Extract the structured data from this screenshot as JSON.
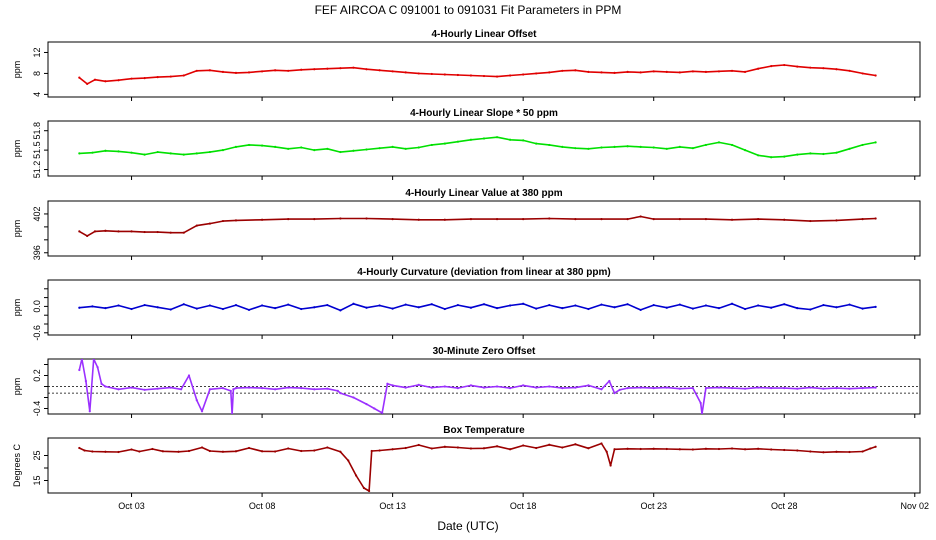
{
  "figure": {
    "title": "FEF   AIRCOA C   091001 to 091031   Fit Parameters in PPM",
    "xlabel": "Date (UTC)"
  },
  "chart_data": [
    {
      "id": "offset",
      "type": "line",
      "title": "4-Hourly Linear Offset",
      "ylabel": "ppm",
      "ylim": [
        3.5,
        14
      ],
      "yticks": [
        4,
        8,
        12
      ],
      "ytick_labels": [
        "4",
        "8",
        "12"
      ],
      "color": "#e00000",
      "x": [
        0,
        0.3,
        0.6,
        1,
        1.5,
        2,
        2.5,
        3,
        3.5,
        4,
        4.5,
        5,
        5.5,
        6,
        6.5,
        7,
        7.5,
        8,
        8.5,
        9,
        9.5,
        10,
        10.5,
        11,
        11.5,
        12,
        12.5,
        13,
        13.5,
        14,
        14.5,
        15,
        15.5,
        16,
        16.5,
        17,
        17.5,
        18,
        18.5,
        19,
        19.5,
        20,
        20.5,
        21,
        21.5,
        22,
        22.5,
        23,
        23.5,
        24,
        24.5,
        25,
        25.5,
        26,
        26.5,
        27,
        27.5,
        28,
        28.5,
        29,
        29.5,
        30,
        30.5
      ],
      "y": [
        7.2,
        6.0,
        6.8,
        6.5,
        6.7,
        7.0,
        7.1,
        7.3,
        7.4,
        7.6,
        8.5,
        8.6,
        8.3,
        8.1,
        8.2,
        8.4,
        8.6,
        8.5,
        8.7,
        8.8,
        8.9,
        9.0,
        9.1,
        8.8,
        8.6,
        8.4,
        8.2,
        8.0,
        7.9,
        7.8,
        7.7,
        7.6,
        7.5,
        7.4,
        7.6,
        7.8,
        8.0,
        8.2,
        8.5,
        8.6,
        8.3,
        8.2,
        8.1,
        8.3,
        8.2,
        8.4,
        8.3,
        8.2,
        8.4,
        8.3,
        8.4,
        8.5,
        8.3,
        8.9,
        9.4,
        9.6,
        9.3,
        9.1,
        9.0,
        8.8,
        8.5,
        8.0,
        7.6
      ]
    },
    {
      "id": "slope",
      "type": "line",
      "title": "4-Hourly Linear Slope * 50 ppm",
      "ylabel": "ppm",
      "ylim": [
        51.1,
        51.95
      ],
      "yticks": [
        51.2,
        51.5,
        51.8
      ],
      "ytick_labels": [
        "51.2",
        "51.5",
        "51.8"
      ],
      "color": "#00e000",
      "x": [
        0,
        0.5,
        1,
        1.5,
        2,
        2.5,
        3,
        3.5,
        4,
        4.5,
        5,
        5.5,
        6,
        6.5,
        7,
        7.5,
        8,
        8.5,
        9,
        9.5,
        10,
        10.5,
        11,
        11.5,
        12,
        12.5,
        13,
        13.5,
        14,
        14.5,
        15,
        15.5,
        16,
        16.5,
        17,
        17.5,
        18,
        18.5,
        19,
        19.5,
        20,
        20.5,
        21,
        21.5,
        22,
        22.5,
        23,
        23.5,
        24,
        24.5,
        25,
        25.5,
        26,
        26.5,
        27,
        27.5,
        28,
        28.5,
        29,
        29.5,
        30,
        30.5
      ],
      "y": [
        51.45,
        51.46,
        51.49,
        51.48,
        51.46,
        51.43,
        51.47,
        51.45,
        51.43,
        51.45,
        51.47,
        51.5,
        51.55,
        51.58,
        51.57,
        51.55,
        51.52,
        51.54,
        51.5,
        51.52,
        51.47,
        51.49,
        51.51,
        51.53,
        51.55,
        51.52,
        51.54,
        51.58,
        51.6,
        51.63,
        51.66,
        51.68,
        51.7,
        51.66,
        51.65,
        51.6,
        51.58,
        51.55,
        51.53,
        51.52,
        51.54,
        51.55,
        51.56,
        51.55,
        51.54,
        51.52,
        51.55,
        51.53,
        51.58,
        51.62,
        51.58,
        51.5,
        51.42,
        51.39,
        51.4,
        51.43,
        51.45,
        51.44,
        51.46,
        51.52,
        51.58,
        51.62
      ]
    },
    {
      "id": "value380",
      "type": "line",
      "title": "4-Hourly Linear Value at 380 ppm",
      "ylabel": "ppm",
      "ylim": [
        395.5,
        404
      ],
      "yticks": [
        396,
        398,
        400,
        402
      ],
      "ytick_labels": [
        "396",
        "",
        "",
        "402"
      ],
      "color": "#9b0000",
      "x": [
        0,
        0.3,
        0.6,
        1,
        1.5,
        2,
        2.5,
        3,
        3.5,
        4,
        4.5,
        5,
        5.5,
        6,
        7,
        8,
        9,
        10,
        11,
        12,
        13,
        14,
        15,
        16,
        17,
        18,
        19,
        20,
        21,
        21.5,
        22,
        23,
        24,
        25,
        26,
        27,
        28,
        29,
        30,
        30.5
      ],
      "y": [
        399.3,
        398.6,
        399.3,
        399.4,
        399.3,
        399.3,
        399.2,
        399.2,
        399.1,
        399.1,
        400.2,
        400.5,
        400.9,
        401.0,
        401.1,
        401.2,
        401.2,
        401.3,
        401.3,
        401.2,
        401.1,
        401.1,
        401.2,
        401.2,
        401.2,
        401.3,
        401.2,
        401.2,
        401.2,
        401.6,
        401.2,
        401.2,
        401.2,
        401.1,
        401.2,
        401.1,
        400.9,
        401.0,
        401.2,
        401.3
      ]
    },
    {
      "id": "curvature",
      "type": "line",
      "title": "4-Hourly Curvature (deviation from linear at 380 ppm)",
      "ylabel": "ppm",
      "ylim": [
        -0.65,
        0.6
      ],
      "yticks": [
        -0.6,
        -0.4,
        -0.2,
        0.0,
        0.2,
        0.4
      ],
      "ytick_labels": [
        "-0.6",
        "",
        "",
        "0.0",
        "",
        ""
      ],
      "color": "#0000d0",
      "x": [
        0,
        0.5,
        1,
        1.5,
        2,
        2.5,
        3,
        3.5,
        4,
        4.5,
        5,
        5.5,
        6,
        6.5,
        7,
        7.5,
        8,
        8.5,
        9,
        9.5,
        10,
        10.5,
        11,
        11.5,
        12,
        12.5,
        13,
        13.5,
        14,
        14.5,
        15,
        15.5,
        16,
        16.5,
        17,
        17.5,
        18,
        18.5,
        19,
        19.5,
        20,
        20.5,
        21,
        21.5,
        22,
        22.5,
        23,
        23.5,
        24,
        24.5,
        25,
        25.5,
        26,
        26.5,
        27,
        27.5,
        28,
        28.5,
        29,
        29.5,
        30,
        30.5
      ],
      "y": [
        -0.03,
        0.0,
        -0.04,
        0.02,
        -0.06,
        0.03,
        -0.02,
        -0.07,
        0.05,
        -0.05,
        0.02,
        -0.06,
        0.03,
        -0.08,
        0.02,
        -0.04,
        0.04,
        -0.06,
        -0.02,
        0.03,
        -0.09,
        0.06,
        -0.03,
        0.02,
        -0.05,
        0.04,
        -0.02,
        0.05,
        -0.06,
        0.03,
        -0.03,
        0.05,
        -0.04,
        0.02,
        0.06,
        -0.05,
        0.03,
        -0.04,
        0.02,
        -0.06,
        0.04,
        -0.02,
        0.05,
        -0.08,
        0.03,
        -0.03,
        0.04,
        -0.05,
        0.02,
        -0.04,
        0.06,
        -0.06,
        0.02,
        -0.03,
        0.05,
        -0.04,
        -0.07,
        0.03,
        -0.02,
        0.04,
        -0.05,
        -0.01
      ]
    },
    {
      "id": "zero_offset",
      "type": "line",
      "title": "30-Minute Zero Offset",
      "ylabel": "ppm",
      "ylim": [
        -0.5,
        0.5
      ],
      "yticks": [
        -0.4,
        -0.2,
        0.0,
        0.2,
        0.4
      ],
      "ytick_labels": [
        "-0.4",
        "",
        "",
        "0.2",
        ""
      ],
      "reference_lines": [
        0.0,
        -0.12
      ],
      "color": "#9b30ff",
      "x": [
        0,
        0.1,
        0.25,
        0.4,
        0.55,
        0.7,
        0.85,
        1,
        1.5,
        2,
        2.5,
        3,
        3.5,
        3.9,
        4.2,
        4.5,
        4.7,
        5,
        5.5,
        5.8,
        5.85,
        5.9,
        6,
        6.5,
        7,
        7.5,
        8,
        8.5,
        9,
        9.5,
        9.9,
        10,
        10.5,
        11,
        11.3,
        11.6,
        11.8,
        12,
        12.5,
        13,
        13.5,
        14,
        14.5,
        15,
        15.5,
        16,
        16.5,
        17,
        17.5,
        18,
        18.5,
        19,
        19.5,
        20,
        20.3,
        20.5,
        20.7,
        21,
        21.5,
        22,
        22.5,
        23,
        23.5,
        23.8,
        23.85,
        24,
        24.5,
        25,
        25.5,
        26,
        26.5,
        27,
        27.5,
        28,
        28.5,
        29,
        29.5,
        30,
        30.5
      ],
      "y": [
        0.3,
        0.5,
        0.1,
        -0.45,
        0.5,
        0.35,
        0.05,
        0.0,
        -0.05,
        -0.02,
        -0.06,
        -0.04,
        -0.02,
        -0.05,
        0.2,
        -0.25,
        -0.45,
        -0.05,
        -0.03,
        -0.08,
        -0.5,
        -0.05,
        -0.03,
        -0.02,
        -0.03,
        -0.05,
        -0.02,
        -0.03,
        -0.05,
        -0.04,
        -0.08,
        -0.12,
        -0.2,
        -0.32,
        -0.4,
        -0.48,
        0.05,
        0.02,
        -0.02,
        0.03,
        -0.02,
        0.0,
        -0.03,
        0.02,
        -0.02,
        0.0,
        -0.03,
        0.02,
        -0.02,
        0.0,
        -0.03,
        -0.02,
        0.02,
        -0.05,
        0.1,
        -0.12,
        -0.06,
        -0.03,
        -0.02,
        -0.03,
        -0.02,
        -0.04,
        -0.03,
        -0.3,
        -0.5,
        -0.03,
        -0.02,
        -0.03,
        -0.04,
        -0.02,
        -0.03,
        -0.03,
        -0.04,
        -0.02,
        -0.04,
        -0.03,
        -0.04,
        -0.03,
        -0.02
      ]
    },
    {
      "id": "box_temp",
      "type": "line",
      "title": "Box Temperature",
      "ylabel": "Degrees C",
      "ylim": [
        10,
        32
      ],
      "yticks": [
        15,
        20,
        25
      ],
      "ytick_labels": [
        "15",
        "",
        "25"
      ],
      "color": "#9b0000",
      "x": [
        0,
        0.2,
        0.5,
        1,
        1.5,
        2,
        2.3,
        2.8,
        3.2,
        3.8,
        4.2,
        4.7,
        5,
        5.5,
        6,
        6.5,
        7,
        7.5,
        8,
        8.5,
        9,
        9.5,
        10,
        10.3,
        10.6,
        10.9,
        11.1,
        11.2,
        11.5,
        12,
        12.5,
        13,
        13.5,
        14,
        14.5,
        15,
        15.5,
        16,
        16.5,
        17,
        17.5,
        18,
        18.5,
        19,
        19.5,
        20,
        20.2,
        20.35,
        20.5,
        21,
        21.5,
        22,
        22.5,
        23,
        23.5,
        24,
        24.5,
        25,
        25.5,
        26,
        26.5,
        27,
        27.5,
        28,
        28.5,
        29,
        29.5,
        30,
        30.3,
        30.5
      ],
      "y": [
        28.0,
        27.0,
        26.6,
        26.5,
        26.4,
        27.4,
        26.6,
        27.6,
        26.7,
        26.5,
        26.8,
        28.2,
        26.8,
        26.5,
        26.7,
        28.0,
        26.7,
        26.6,
        27.8,
        26.8,
        27.0,
        28.2,
        26.5,
        23.0,
        17.0,
        12.0,
        10.8,
        26.8,
        27.0,
        27.5,
        28.0,
        29.2,
        27.8,
        28.5,
        28.2,
        27.8,
        27.9,
        28.7,
        27.5,
        29.0,
        28.0,
        29.3,
        28.2,
        29.5,
        27.9,
        29.8,
        26.5,
        21.0,
        27.5,
        27.7,
        27.6,
        27.7,
        27.6,
        27.5,
        27.4,
        27.7,
        27.6,
        27.8,
        27.5,
        27.7,
        27.4,
        27.2,
        27.0,
        26.6,
        26.3,
        26.5,
        26.4,
        26.6,
        27.8,
        28.5
      ]
    }
  ],
  "x_axis": {
    "units": "days after 2009-10-01 00:00 UTC",
    "xlim": [
      -1.2,
      32.2
    ],
    "ticks": [
      2,
      7,
      12,
      17,
      22,
      27,
      32
    ],
    "tick_labels": [
      "Oct 03",
      "Oct 08",
      "Oct 13",
      "Oct 18",
      "Oct 23",
      "Oct 28",
      "Nov 02"
    ]
  }
}
